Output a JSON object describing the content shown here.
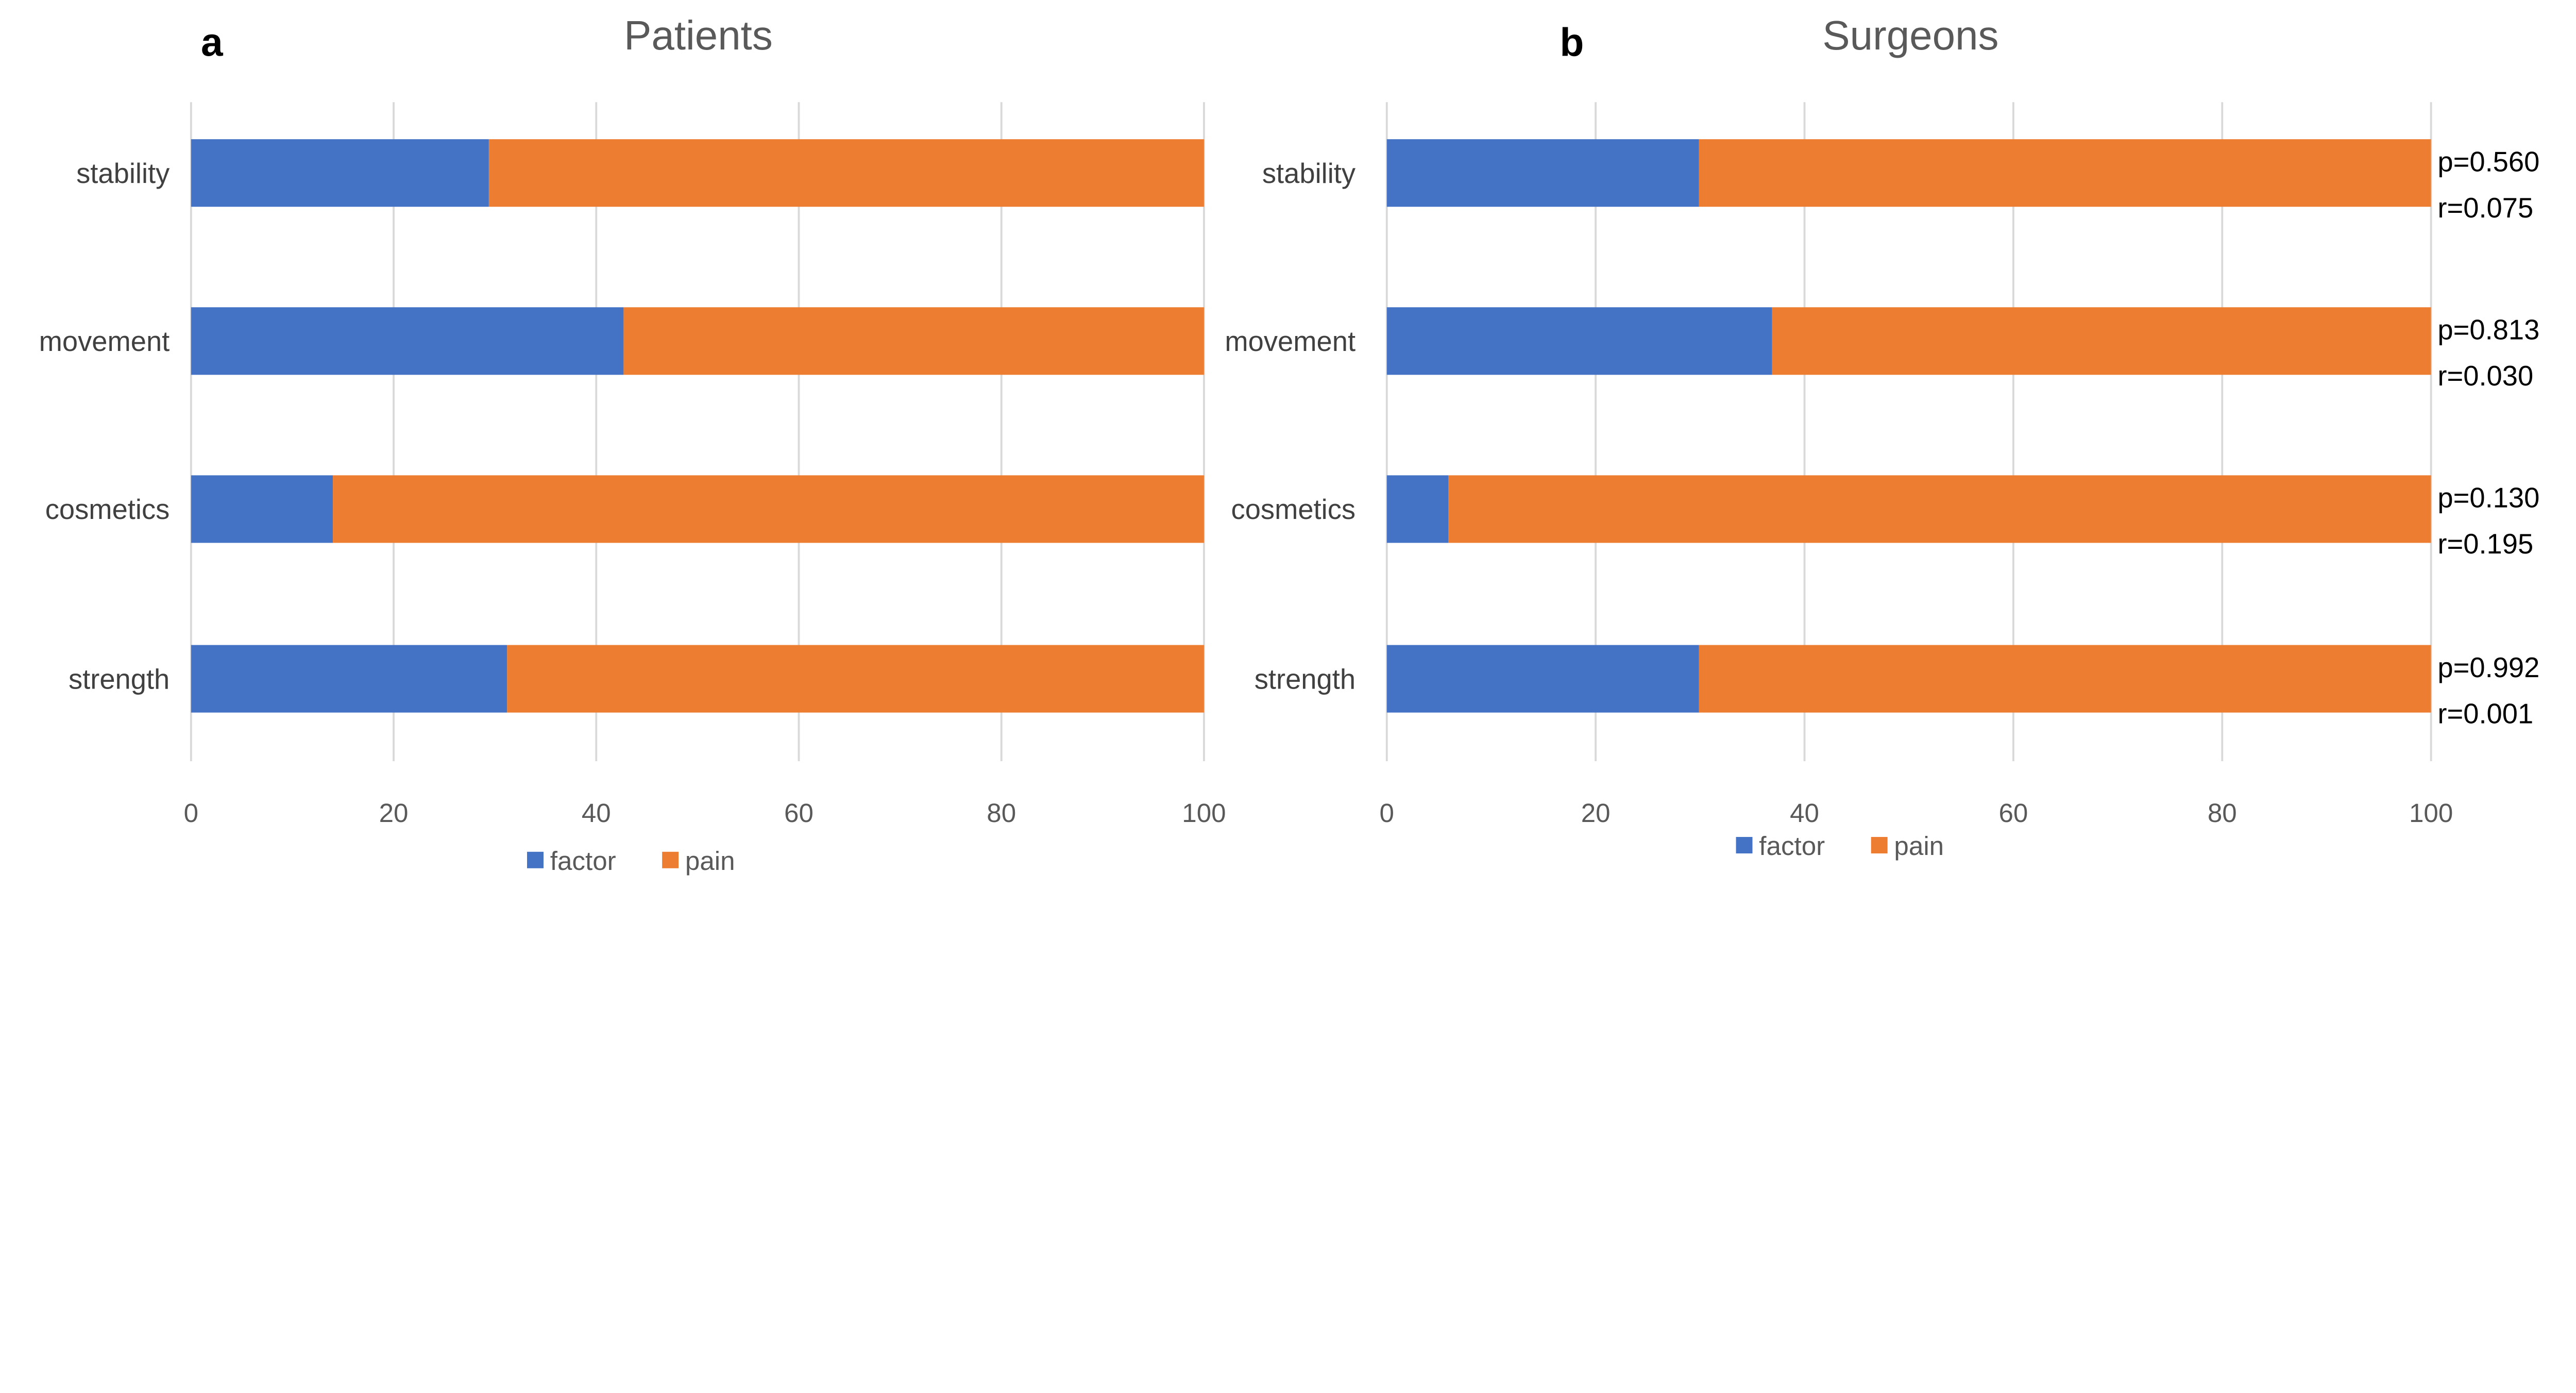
{
  "chart_data": [
    {
      "type": "bar",
      "orientation": "horizontal",
      "stacked": true,
      "panel_label": "a",
      "title": "Patients",
      "categories": [
        "stability",
        "movement",
        "cosmetics",
        "strength"
      ],
      "series": [
        {
          "name": "factor",
          "color": "#4472C4",
          "values": [
            29.4,
            42.7,
            14.0,
            31.2
          ]
        },
        {
          "name": "pain",
          "color": "#ED7D31",
          "values": [
            70.6,
            57.3,
            86.0,
            68.8
          ]
        }
      ],
      "xlim": [
        0,
        100
      ],
      "xticks": [
        "0",
        "20",
        "40",
        "60",
        "80",
        "100"
      ],
      "grid": true,
      "legend": "bottom"
    },
    {
      "type": "bar",
      "orientation": "horizontal",
      "stacked": true,
      "panel_label": "b",
      "title": "Surgeons",
      "categories": [
        "stability",
        "movement",
        "cosmetics",
        "strength"
      ],
      "series": [
        {
          "name": "factor",
          "color": "#4472C4",
          "values": [
            29.9,
            36.9,
            5.9,
            29.9
          ]
        },
        {
          "name": "pain",
          "color": "#ED7D31",
          "values": [
            70.1,
            63.1,
            94.1,
            70.1
          ]
        }
      ],
      "annotations": [
        {
          "p": "p=0.560",
          "r": "r=0.075"
        },
        {
          "p": "p=0.813",
          "r": "r=0.030"
        },
        {
          "p": "p=0.130",
          "r": "r=0.195"
        },
        {
          "p": "p=0.992",
          "r": "r=0.001"
        }
      ],
      "xlim": [
        0,
        100
      ],
      "xticks": [
        "0",
        "20",
        "40",
        "60",
        "80",
        "100"
      ],
      "grid": true,
      "legend": "bottom"
    }
  ]
}
